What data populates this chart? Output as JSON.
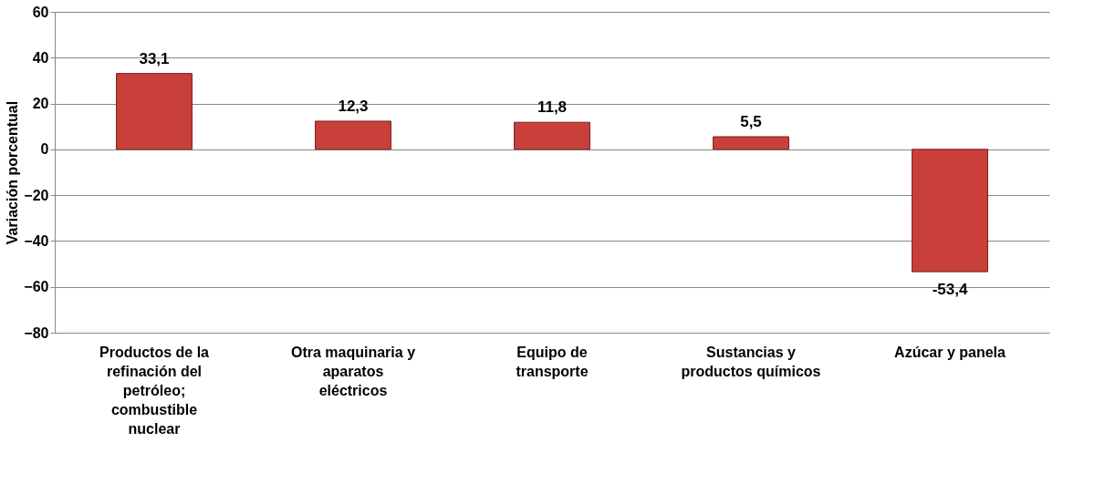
{
  "chart_data": {
    "type": "bar",
    "ylabel": "Variación porcentual",
    "categories": [
      "Productos de la refinación del petróleo; combustible nuclear",
      "Otra maquinaria y aparatos eléctricos",
      "Equipo de transporte",
      "Sustancias y productos químicos",
      "Azúcar y panela"
    ],
    "values": [
      33.1,
      12.3,
      11.8,
      5.5,
      -53.4
    ],
    "value_labels": [
      "33,1",
      "12,3",
      "11,8",
      "5,5",
      "-53,4"
    ],
    "color": "#c9403b",
    "ylim": [
      -80,
      60
    ],
    "yticks": [
      -80,
      -60,
      -40,
      -20,
      0,
      20,
      40,
      60
    ],
    "grid": "y"
  }
}
